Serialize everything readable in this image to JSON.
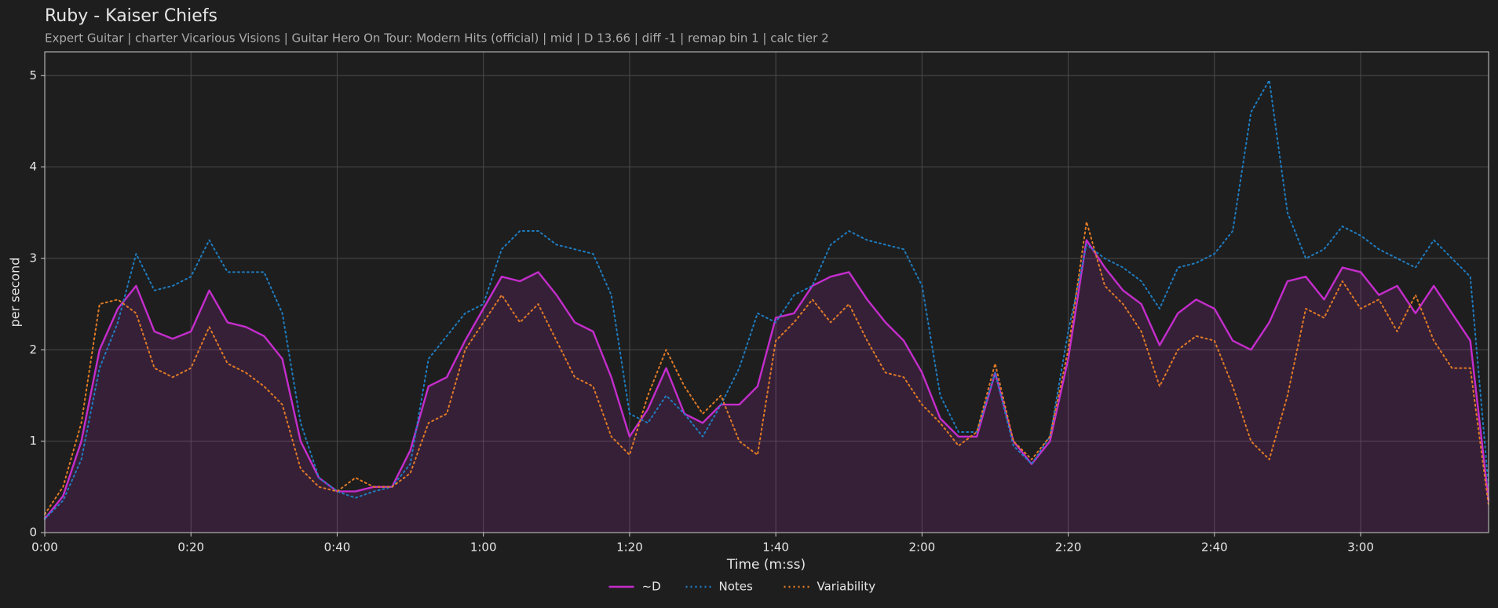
{
  "chart_data": {
    "type": "line",
    "title": "Ruby - Kaiser Chiefs",
    "subtitle": "Expert Guitar  |  charter Vicarious Visions  |  Guitar Hero On Tour: Modern Hits (official)  |  mid  |  D 13.66  |  diff -1  |  remap bin 1  |  calc tier 2",
    "x_label": "Time (m:ss)",
    "y_label": "per second",
    "x": [
      0,
      2.5,
      5,
      7.5,
      10,
      12.5,
      15,
      17.5,
      20,
      22.5,
      25,
      27.5,
      30,
      32.5,
      35,
      37.5,
      40,
      42.5,
      45,
      47.5,
      50,
      52.5,
      55,
      57.5,
      60,
      62.5,
      65,
      67.5,
      70,
      72.5,
      75,
      77.5,
      80,
      82.5,
      85,
      87.5,
      90,
      92.5,
      95,
      97.5,
      100,
      102.5,
      105,
      107.5,
      110,
      112.5,
      115,
      117.5,
      120,
      122.5,
      125,
      127.5,
      130,
      132.5,
      135,
      137.5,
      140,
      142.5,
      145,
      147.5,
      150,
      152.5,
      155,
      157.5,
      160,
      162.5,
      165,
      167.5,
      170,
      172.5,
      175,
      177.5,
      180,
      182.5,
      185,
      187.5,
      190,
      192.5,
      195,
      197.5
    ],
    "series": [
      {
        "name": "~D",
        "color": "#c42dcc",
        "dash": "solid",
        "fill_under": true,
        "values": [
          0.15,
          0.4,
          1.0,
          2.0,
          2.45,
          2.7,
          2.2,
          2.12,
          2.2,
          2.65,
          2.3,
          2.25,
          2.15,
          1.9,
          1.0,
          0.6,
          0.45,
          0.45,
          0.5,
          0.5,
          0.9,
          1.6,
          1.7,
          2.1,
          2.45,
          2.8,
          2.75,
          2.85,
          2.6,
          2.3,
          2.2,
          1.7,
          1.05,
          1.35,
          1.8,
          1.3,
          1.2,
          1.4,
          1.4,
          1.6,
          2.35,
          2.4,
          2.7,
          2.8,
          2.85,
          2.55,
          2.3,
          2.1,
          1.75,
          1.25,
          1.05,
          1.05,
          1.75,
          1.0,
          0.75,
          1.0,
          1.9,
          3.2,
          2.9,
          2.65,
          2.5,
          2.05,
          2.4,
          2.55,
          2.45,
          2.1,
          2.0,
          2.3,
          2.75,
          2.8,
          2.55,
          2.9,
          2.85,
          2.6,
          2.7,
          2.4,
          2.7,
          2.4,
          2.1,
          0.35
        ]
      },
      {
        "name": "Notes",
        "color": "#1f7cc0",
        "dash": "dotted",
        "fill_under": false,
        "values": [
          0.15,
          0.35,
          0.8,
          1.8,
          2.3,
          3.05,
          2.65,
          2.7,
          2.8,
          3.2,
          2.85,
          2.85,
          2.85,
          2.4,
          1.2,
          0.6,
          0.45,
          0.38,
          0.45,
          0.5,
          0.75,
          1.9,
          2.15,
          2.4,
          2.5,
          3.1,
          3.3,
          3.3,
          3.15,
          3.1,
          3.05,
          2.6,
          1.3,
          1.2,
          1.5,
          1.3,
          1.05,
          1.4,
          1.8,
          2.4,
          2.3,
          2.6,
          2.7,
          3.15,
          3.3,
          3.2,
          3.15,
          3.1,
          2.7,
          1.5,
          1.1,
          1.1,
          1.75,
          0.95,
          0.75,
          1.05,
          2.2,
          3.15,
          3.0,
          2.9,
          2.75,
          2.45,
          2.9,
          2.95,
          3.05,
          3.3,
          4.6,
          4.95,
          3.5,
          3.0,
          3.1,
          3.35,
          3.25,
          3.1,
          3.0,
          2.9,
          3.2,
          3.0,
          2.8,
          0.5
        ]
      },
      {
        "name": "Variability",
        "color": "#e07a26",
        "dash": "dotted",
        "fill_under": false,
        "values": [
          0.2,
          0.5,
          1.2,
          2.5,
          2.55,
          2.4,
          1.8,
          1.7,
          1.8,
          2.25,
          1.85,
          1.75,
          1.6,
          1.4,
          0.7,
          0.5,
          0.45,
          0.6,
          0.5,
          0.5,
          0.65,
          1.2,
          1.3,
          2.0,
          2.3,
          2.6,
          2.3,
          2.5,
          2.1,
          1.7,
          1.6,
          1.05,
          0.85,
          1.5,
          2.0,
          1.6,
          1.3,
          1.5,
          1.0,
          0.85,
          2.1,
          2.3,
          2.55,
          2.3,
          2.5,
          2.1,
          1.75,
          1.7,
          1.4,
          1.2,
          0.95,
          1.1,
          1.85,
          1.0,
          0.8,
          1.05,
          2.0,
          3.4,
          2.7,
          2.5,
          2.2,
          1.6,
          2.0,
          2.15,
          2.1,
          1.6,
          1.0,
          0.8,
          1.5,
          2.45,
          2.35,
          2.75,
          2.45,
          2.55,
          2.2,
          2.6,
          2.1,
          1.8,
          1.8,
          0.3
        ]
      }
    ],
    "xlim": [
      0,
      197.5
    ],
    "xticks": [
      {
        "value": 0,
        "label": "0:00"
      },
      {
        "value": 20,
        "label": "0:20"
      },
      {
        "value": 40,
        "label": "0:40"
      },
      {
        "value": 60,
        "label": "1:00"
      },
      {
        "value": 80,
        "label": "1:20"
      },
      {
        "value": 100,
        "label": "1:40"
      },
      {
        "value": 120,
        "label": "2:00"
      },
      {
        "value": 140,
        "label": "2:20"
      },
      {
        "value": 160,
        "label": "2:40"
      },
      {
        "value": 180,
        "label": "3:00"
      }
    ],
    "ylim": [
      0,
      5.26
    ],
    "yticks": [
      0,
      1,
      2,
      3,
      4,
      5
    ],
    "grid": true,
    "legend": "bottom"
  }
}
